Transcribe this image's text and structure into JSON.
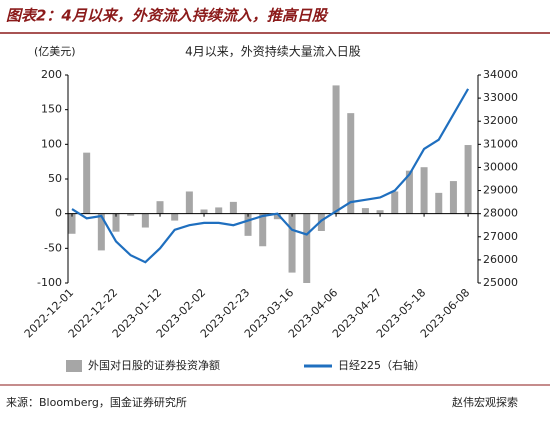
{
  "header": "图表2：4月以来，外资流入持续流入，推高日股",
  "source": "来源：Bloomberg，国金证券研究所",
  "watermark": "赵伟宏观探索",
  "chart_data": {
    "type": "bar_line",
    "title": "4月以来，外资持续大量流入日股",
    "y_label": "(亿美元)",
    "categories": [
      "2022-12-01",
      null,
      null,
      "2022-12-22",
      null,
      null,
      "2023-01-12",
      null,
      null,
      "2023-02-02",
      null,
      null,
      "2023-02-23",
      null,
      null,
      "2023-03-16",
      null,
      null,
      "2023-04-06",
      null,
      null,
      "2023-04-27",
      null,
      null,
      "2023-05-18",
      null,
      null,
      "2023-06-08"
    ],
    "series": [
      {
        "name": "外国对日股的证券投资净额",
        "type": "bar",
        "color": "#a6a6a6",
        "axis": "y",
        "values": [
          -29,
          88,
          -53,
          -26,
          -3,
          -20,
          18,
          -10,
          32,
          6,
          9,
          17,
          -32,
          -47,
          -8,
          -85,
          -100,
          -25,
          185,
          145,
          8,
          5,
          32,
          62,
          67,
          30,
          47,
          99
        ]
      },
      {
        "name": "日经225（右轴）",
        "type": "line",
        "color": "#1f6fbf",
        "axis": "y2",
        "values": [
          28200,
          27800,
          27900,
          26800,
          26200,
          25900,
          26500,
          27300,
          27500,
          27600,
          27600,
          27500,
          27700,
          27900,
          28000,
          27300,
          27100,
          27700,
          28100,
          28500,
          28600,
          28700,
          29000,
          29700,
          30800,
          31200,
          32300,
          33400
        ]
      }
    ],
    "ylim": [
      -100,
      200
    ],
    "yticks": [
      -100,
      -50,
      0,
      50,
      100,
      150,
      200
    ],
    "y2lim": [
      25000,
      34000
    ],
    "y2ticks": [
      25000,
      26000,
      27000,
      28000,
      29000,
      30000,
      31000,
      32000,
      33000,
      34000
    ]
  }
}
